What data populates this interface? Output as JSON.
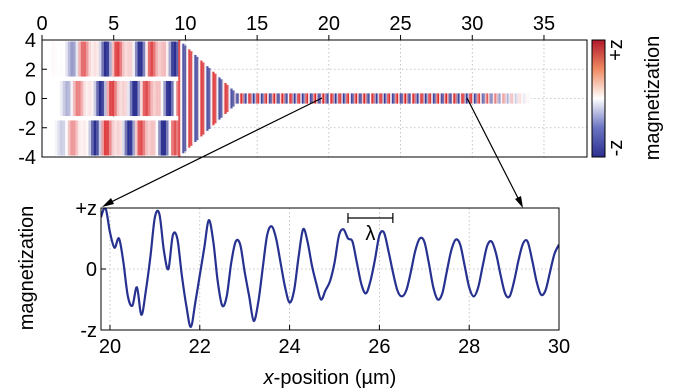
{
  "chart_data": [
    {
      "type": "heatmap",
      "xlim": [
        0,
        38
      ],
      "ylim": [
        -4,
        4
      ],
      "xticks": [
        0,
        5,
        10,
        15,
        20,
        25,
        30,
        35
      ],
      "xtick_labels": [
        "0",
        "5",
        "10",
        "15",
        "20",
        "25",
        "30",
        "35"
      ],
      "yticks": [
        4,
        2,
        0,
        -2,
        -4
      ],
      "ytick_labels": [
        "4",
        "2",
        "0",
        "-2",
        "-4"
      ],
      "grid": true,
      "colorbar": {
        "label": "magnetization",
        "top_label": "+z",
        "bottom_label": "-z",
        "colors": [
          "#2b2f8f",
          "#ffffff",
          "#d7191c"
        ]
      },
      "waveguides": {
        "input_y": [
          2.7,
          0,
          -2.7
        ],
        "input_x_range": [
          0,
          9.5
        ],
        "merge_x": 13.5,
        "output_y": 0,
        "output_x_range": [
          13.5,
          34
        ]
      },
      "pointer_sources": [
        20,
        30
      ]
    },
    {
      "type": "line",
      "xlim": [
        19.8,
        30
      ],
      "ylim": [
        -1,
        1
      ],
      "xticks": [
        20,
        22,
        24,
        26,
        28,
        30
      ],
      "xtick_labels": [
        "20",
        "22",
        "24",
        "26",
        "28",
        "30"
      ],
      "ytick_labels": [
        "+z",
        "0",
        "-z"
      ],
      "xlabel_italic": "x",
      "xlabel_rest": "-position (µm)",
      "ylabel": "magnetization",
      "annotation": {
        "text": "λ",
        "x_start": 25.3,
        "x_end": 26.3
      },
      "series": [
        {
          "color": "#27318f",
          "x": [
            19.8,
            19.9,
            20.0,
            20.1,
            20.2,
            20.3,
            20.4,
            20.5,
            20.6,
            20.7,
            20.8,
            20.9,
            21.0,
            21.1,
            21.2,
            21.3,
            21.4,
            21.5,
            21.6,
            21.7,
            21.8,
            21.9,
            22.0,
            22.1,
            22.2,
            22.3,
            22.4,
            22.5,
            22.6,
            22.7,
            22.8,
            22.9,
            23.0,
            23.1,
            23.2,
            23.3,
            23.4,
            23.5,
            23.6,
            23.7,
            23.8,
            23.9,
            24.0,
            24.1,
            24.2,
            24.3,
            24.4,
            24.5,
            24.6,
            24.7,
            24.8,
            24.9,
            25.0,
            25.1,
            25.2,
            25.3,
            25.4,
            25.5,
            25.6,
            25.7,
            25.8,
            25.9,
            26.0,
            26.1,
            26.2,
            26.3,
            26.4,
            26.5,
            26.6,
            26.7,
            26.8,
            26.9,
            27.0,
            27.1,
            27.2,
            27.3,
            27.4,
            27.5,
            27.6,
            27.7,
            27.8,
            27.9,
            28.0,
            28.1,
            28.2,
            28.3,
            28.4,
            28.5,
            28.6,
            28.7,
            28.8,
            28.9,
            29.0,
            29.1,
            29.2,
            29.3,
            29.4,
            29.5,
            29.6,
            29.7,
            29.8,
            29.9,
            30.0
          ],
          "y": [
            0.85,
            1.0,
            0.6,
            0.35,
            0.5,
            0.1,
            -0.45,
            -0.6,
            -0.3,
            -0.75,
            -0.35,
            0.2,
            0.85,
            0.9,
            0.3,
            0.0,
            0.55,
            0.5,
            -0.1,
            -0.6,
            -0.95,
            -0.55,
            -0.1,
            0.35,
            0.8,
            0.45,
            -0.2,
            -0.6,
            -0.45,
            0.1,
            0.45,
            0.4,
            -0.05,
            -0.45,
            -0.85,
            -0.55,
            0.0,
            0.55,
            0.7,
            0.5,
            0.1,
            -0.3,
            -0.55,
            -0.35,
            0.2,
            0.65,
            0.45,
            0.05,
            -0.25,
            -0.5,
            -0.35,
            -0.2,
            0.1,
            0.55,
            0.65,
            0.5,
            0.45,
            0.1,
            -0.25,
            -0.4,
            -0.2,
            0.15,
            0.55,
            0.6,
            0.3,
            -0.05,
            -0.35,
            -0.45,
            -0.35,
            -0.05,
            0.3,
            0.5,
            0.45,
            0.1,
            -0.3,
            -0.5,
            -0.4,
            -0.05,
            0.3,
            0.48,
            0.4,
            0.05,
            -0.3,
            -0.45,
            -0.3,
            0.05,
            0.38,
            0.45,
            0.25,
            -0.1,
            -0.4,
            -0.45,
            -0.2,
            0.15,
            0.42,
            0.45,
            0.15,
            -0.2,
            -0.42,
            -0.35,
            -0.05,
            0.25,
            0.4
          ]
        }
      ]
    }
  ]
}
